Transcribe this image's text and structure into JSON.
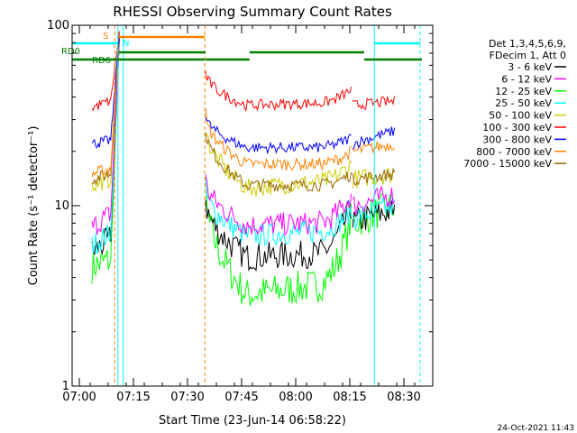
{
  "chart_data": {
    "type": "line",
    "title": "RHESSI Observing Summary Count Rates",
    "xlabel": "Start Time (23-Jun-14 06:58:22)",
    "ylabel": "Count Rate (s⁻¹ detector⁻¹)",
    "yscale": "log",
    "ylim": [
      1,
      100
    ],
    "xlim_minutes": [
      -2,
      98
    ],
    "x_ticks": [
      {
        "label": "07:00",
        "m": 0
      },
      {
        "label": "07:15",
        "m": 15
      },
      {
        "label": "07:30",
        "m": 30
      },
      {
        "label": "07:45",
        "m": 45
      },
      {
        "label": "08:00",
        "m": 60
      },
      {
        "label": "08:15",
        "m": 75
      },
      {
        "label": "08:30",
        "m": 90
      }
    ],
    "y_ticks": [
      {
        "label": "1",
        "v": 1
      },
      {
        "label": "10",
        "v": 10
      },
      {
        "label": "100",
        "v": 100
      }
    ],
    "legend_header": [
      "Det 1,3,4,5,6,9,",
      "FDecim 1, Att 0"
    ],
    "legend_position": "right",
    "timestamp": "24-Oct-2021 11:43",
    "series": [
      {
        "name": "3 - 6 keV",
        "color": "#000000",
        "pre": [
          5.5,
          6.5
        ],
        "mid": [
          11,
          5.2,
          5.4,
          10
        ],
        "post": [
          8,
          9.5
        ],
        "noise": 0.18
      },
      {
        "name": "6 - 12 keV",
        "color": "#ff00ff",
        "pre": [
          7.5,
          9
        ],
        "mid": [
          14,
          7.8,
          8,
          11.5
        ],
        "post": [
          10,
          11.5
        ],
        "noise": 0.15
      },
      {
        "name": "12 - 25 keV",
        "color": "#00ff00",
        "pre": [
          4.6,
          5
        ],
        "mid": [
          12,
          3.2,
          3.6,
          8.5
        ],
        "post": [
          8,
          10
        ],
        "noise": 0.22
      },
      {
        "name": "25 - 50 keV",
        "color": "#00ffff",
        "pre": [
          6,
          7
        ],
        "mid": [
          12.5,
          6.8,
          7.2,
          9.5
        ],
        "post": [
          8.5,
          10
        ],
        "noise": 0.15
      },
      {
        "name": "50 - 100 keV",
        "color": "#cccc00",
        "pre": [
          13,
          14
        ],
        "mid": [
          28,
          12.5,
          13.5,
          17
        ],
        "post": [
          14,
          15
        ],
        "noise": 0.12
      },
      {
        "name": "100 - 300 keV",
        "color": "#ff0000",
        "pre": [
          35,
          38
        ],
        "mid": [
          55,
          36,
          37,
          44
        ],
        "post": [
          36,
          38
        ],
        "noise": 0.07
      },
      {
        "name": "300 - 800 keV",
        "color": "#0000ff",
        "pre": [
          22,
          23
        ],
        "mid": [
          32,
          21,
          21,
          24
        ],
        "post": [
          22,
          26
        ],
        "noise": 0.07
      },
      {
        "name": "800 - 7000 keV",
        "color": "#ff8000",
        "pre": [
          15,
          16
        ],
        "mid": [
          32,
          17,
          17,
          20
        ],
        "post": [
          20,
          22
        ],
        "noise": 0.08
      },
      {
        "name": "7000 - 15000 keV",
        "color": "#996600",
        "pre": [
          14,
          15
        ],
        "mid": [
          27,
          13,
          13,
          15
        ],
        "post": [
          14,
          15
        ],
        "noise": 0.08
      }
    ],
    "annotations": {
      "markers": [
        {
          "label": "RD0",
          "color": "#008000"
        },
        {
          "label": "RD6",
          "color": "#008000"
        },
        {
          "label": "S",
          "color": "#ff8000"
        },
        {
          "label": "N",
          "color": "#00ffff"
        }
      ]
    }
  }
}
